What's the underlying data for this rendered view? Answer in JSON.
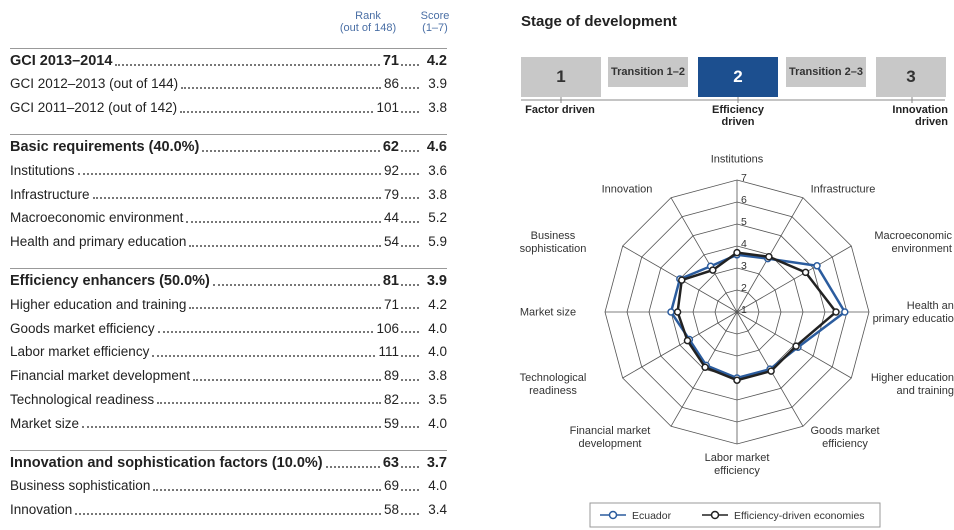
{
  "header": {
    "rank_label": "Rank",
    "rank_note": "(out of 148)",
    "score_label": "Score",
    "score_note": "(1–7)"
  },
  "table": {
    "sections": [
      {
        "heading": {
          "label": "GCI 2013–2014",
          "rank": 71,
          "score": "4.2"
        },
        "rows": [
          {
            "label": "GCI 2012–2013 (out of 144)",
            "rank": 86,
            "score": "3.9"
          },
          {
            "label": "GCI 2011–2012 (out of 142)",
            "rank": 101,
            "score": "3.8"
          }
        ]
      },
      {
        "heading": {
          "label": "Basic requirements (40.0%)",
          "rank": 62,
          "score": "4.6"
        },
        "rows": [
          {
            "label": "Institutions",
            "rank": 92,
            "score": "3.6"
          },
          {
            "label": "Infrastructure",
            "rank": 79,
            "score": "3.8"
          },
          {
            "label": "Macroeconomic environment",
            "rank": 44,
            "score": "5.2"
          },
          {
            "label": "Health and primary education",
            "rank": 54,
            "score": "5.9"
          }
        ]
      },
      {
        "heading": {
          "label": "Efficiency enhancers (50.0%)",
          "rank": 81,
          "score": "3.9"
        },
        "rows": [
          {
            "label": "Higher education and training",
            "rank": 71,
            "score": "4.2"
          },
          {
            "label": "Goods market efficiency",
            "rank": 106,
            "score": "4.0"
          },
          {
            "label": "Labor market efficiency",
            "rank": 111,
            "score": "4.0"
          },
          {
            "label": "Financial market development",
            "rank": 89,
            "score": "3.8"
          },
          {
            "label": "Technological readiness",
            "rank": 82,
            "score": "3.5"
          },
          {
            "label": "Market size",
            "rank": 59,
            "score": "4.0"
          }
        ]
      },
      {
        "heading": {
          "label": "Innovation and sophistication factors (10.0%)",
          "rank": 63,
          "score": "3.7"
        },
        "rows": [
          {
            "label": "Business sophistication",
            "rank": 69,
            "score": "4.0"
          },
          {
            "label": "Innovation",
            "rank": 58,
            "score": "3.4"
          }
        ]
      }
    ]
  },
  "stage": {
    "title": "Stage of development",
    "boxes": [
      "1",
      "Transition 1–2",
      "2",
      "Transition 2–3",
      "3"
    ],
    "current": 2,
    "labels": [
      "Factor driven",
      "Efficiency driven",
      "Innovation driven"
    ]
  },
  "chart_data": {
    "type": "radar",
    "categories": [
      "Institutions",
      "Infrastructure",
      "Macroeconomic environment",
      "Health and primary education",
      "Higher education and training",
      "Goods market efficiency",
      "Labor market efficiency",
      "Financial market development",
      "Technological readiness",
      "Market size",
      "Business sophistication",
      "Innovation"
    ],
    "rlim": [
      1,
      7
    ],
    "rticks": [
      1,
      2,
      3,
      4,
      5,
      6,
      7
    ],
    "series": [
      {
        "name": "Ecuador",
        "color": "#2b5c9e",
        "values": [
          3.6,
          3.8,
          5.2,
          5.9,
          4.2,
          4.0,
          4.0,
          3.8,
          3.5,
          4.0,
          4.0,
          3.4
        ]
      },
      {
        "name": "Efficiency-driven economies",
        "color": "#222222",
        "values": [
          3.7,
          3.9,
          4.6,
          5.5,
          4.1,
          4.1,
          4.1,
          3.9,
          3.6,
          3.7,
          3.9,
          3.2
        ]
      }
    ]
  }
}
